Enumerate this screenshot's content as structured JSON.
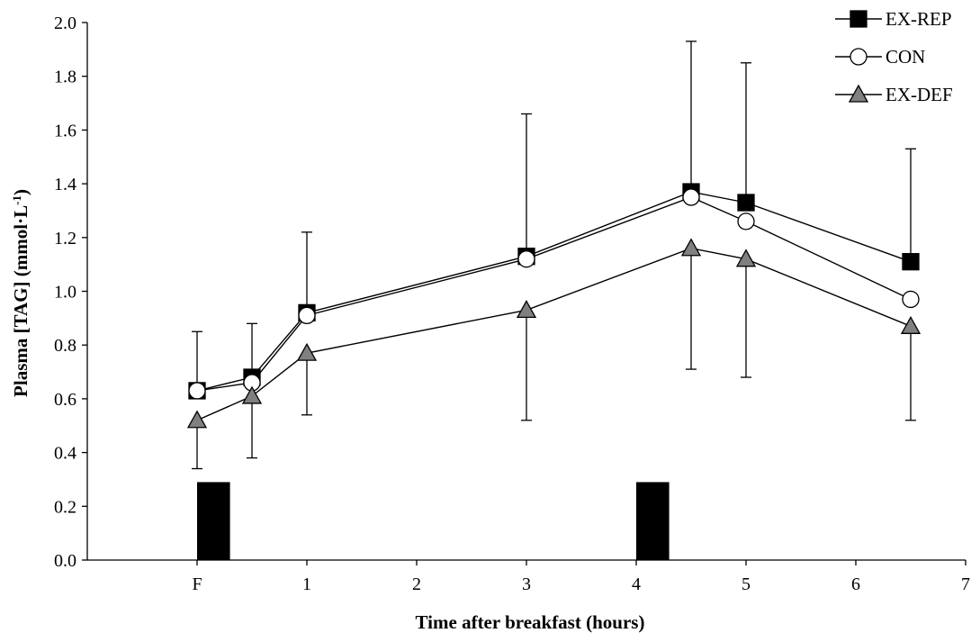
{
  "chart_data": {
    "type": "line",
    "xlabel": "Time after breakfast (hours)",
    "ylabel": "Plasma [TAG] (mmol·L-1)",
    "ylabel_parts": {
      "main": "Plasma [TAG] (mmol·L",
      "sup": "-1",
      "close": ")"
    },
    "xlim": [
      -1,
      7
    ],
    "ylim": [
      0,
      2.0
    ],
    "x_ticks": [
      {
        "value": 0,
        "label": "F"
      },
      {
        "value": 1,
        "label": "1"
      },
      {
        "value": 2,
        "label": "2"
      },
      {
        "value": 3,
        "label": "3"
      },
      {
        "value": 4,
        "label": "4"
      },
      {
        "value": 5,
        "label": "5"
      },
      {
        "value": 6,
        "label": "6"
      },
      {
        "value": 7,
        "label": "7"
      }
    ],
    "y_ticks": [
      "0.0",
      "0.2",
      "0.4",
      "0.6",
      "0.8",
      "1.0",
      "1.2",
      "1.4",
      "1.6",
      "1.8",
      "2.0"
    ],
    "grid": false,
    "legend_position": "top-right",
    "meal_bars": [
      {
        "x_start": 0.0,
        "x_end": 0.3,
        "y_top": 0.29
      },
      {
        "x_start": 4.0,
        "x_end": 4.3,
        "y_top": 0.29
      }
    ],
    "series": [
      {
        "name": "EX-REP",
        "marker": "square",
        "fill": "#000000",
        "x": [
          0,
          0.5,
          1,
          3,
          4.5,
          5,
          6.5
        ],
        "y": [
          0.63,
          0.68,
          0.92,
          1.13,
          1.37,
          1.33,
          1.11
        ],
        "err_up": [
          0.22,
          0.2,
          0.3,
          0.53,
          0.56,
          0.52,
          0.42
        ],
        "err_down": [
          0,
          0,
          0,
          0,
          0,
          0,
          0
        ]
      },
      {
        "name": "CON",
        "marker": "circle",
        "fill": "#ffffff",
        "x": [
          0,
          0.5,
          1,
          3,
          4.5,
          5,
          6.5
        ],
        "y": [
          0.63,
          0.66,
          0.91,
          1.12,
          1.35,
          1.26,
          0.97
        ],
        "err_up": [
          0,
          0,
          0,
          0,
          0,
          0,
          0
        ],
        "err_down": [
          0,
          0,
          0,
          0,
          0,
          0,
          0
        ]
      },
      {
        "name": "EX-DEF",
        "marker": "triangle",
        "fill": "#808080",
        "x": [
          0,
          0.5,
          1,
          3,
          4.5,
          5,
          6.5
        ],
        "y": [
          0.52,
          0.61,
          0.77,
          0.93,
          1.16,
          1.12,
          0.87
        ],
        "err_up": [
          0,
          0,
          0,
          0,
          0,
          0,
          0
        ],
        "err_down": [
          0.18,
          0.23,
          0.23,
          0.41,
          0.45,
          0.44,
          0.35
        ]
      }
    ]
  }
}
